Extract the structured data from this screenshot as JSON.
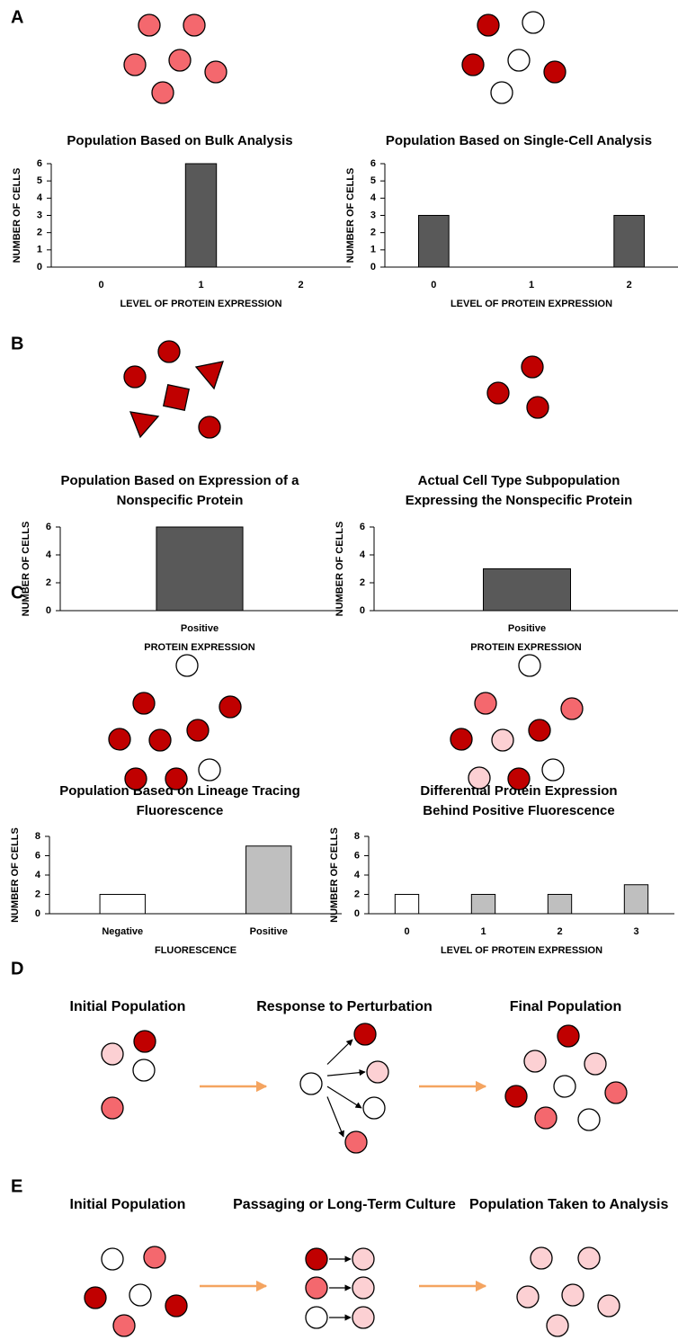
{
  "panels": [
    "A",
    "B",
    "C",
    "D",
    "E"
  ],
  "diagrams": {
    "D": {
      "stages": [
        "Initial Population",
        "Response to Perturbation",
        "Final Population"
      ]
    },
    "E": {
      "stages": [
        "Initial Population",
        "Passaging or Long-Term Culture",
        "Population Taken to Analysis"
      ]
    }
  },
  "chart_data": [
    {
      "type": "bar",
      "title_lines": [
        "Population Based on Bulk Analysis"
      ],
      "categories": [
        "0",
        "1",
        "2"
      ],
      "values": [
        0,
        6,
        0
      ],
      "colors": [
        "#595959",
        "#595959",
        "#595959"
      ],
      "xlabel": "LEVEL OF PROTEIN EXPRESSION",
      "ylabel": "NUMBER OF CELLS",
      "ylim": [
        0,
        6
      ],
      "yticks": [
        0,
        1,
        2,
        3,
        4,
        5,
        6
      ]
    },
    {
      "type": "bar",
      "title_lines": [
        "Population Based on Single-Cell Analysis"
      ],
      "categories": [
        "0",
        "1",
        "2"
      ],
      "values": [
        3,
        0,
        3
      ],
      "colors": [
        "#595959",
        "#595959",
        "#595959"
      ],
      "xlabel": "LEVEL OF PROTEIN EXPRESSION",
      "ylabel": "NUMBER OF CELLS",
      "ylim": [
        0,
        6
      ],
      "yticks": [
        0,
        1,
        2,
        3,
        4,
        5,
        6
      ]
    },
    {
      "type": "bar",
      "title_lines": [
        "Population Based on Expression of a",
        "Nonspecific Protein"
      ],
      "categories": [
        "Positive"
      ],
      "values": [
        6
      ],
      "colors": [
        "#595959"
      ],
      "xlabel": "PROTEIN EXPRESSION",
      "ylabel": "NUMBER OF CELLS",
      "ylim": [
        0,
        6
      ],
      "yticks": [
        0,
        2,
        4,
        6
      ]
    },
    {
      "type": "bar",
      "title_lines": [
        "Actual Cell Type Subpopulation",
        "Expressing the Nonspecific Protein"
      ],
      "categories": [
        "Positive"
      ],
      "values": [
        3
      ],
      "colors": [
        "#595959"
      ],
      "xlabel": "PROTEIN EXPRESSION",
      "ylabel": "NUMBER OF CELLS",
      "ylim": [
        0,
        6
      ],
      "yticks": [
        0,
        2,
        4,
        6
      ]
    },
    {
      "type": "bar",
      "title_lines": [
        "Population Based on Lineage Tracing",
        "Fluorescence"
      ],
      "categories": [
        "Negative",
        "Positive"
      ],
      "values": [
        2,
        7
      ],
      "colors": [
        "#ffffff",
        "#bfbfbf"
      ],
      "xlabel": "FLUORESCENCE",
      "ylabel": "NUMBER OF CELLS",
      "ylim": [
        0,
        8
      ],
      "yticks": [
        0,
        2,
        4,
        6,
        8
      ]
    },
    {
      "type": "bar",
      "title_lines": [
        "Differential Protein Expression",
        "Behind Positive Fluorescence"
      ],
      "categories": [
        "0",
        "1",
        "2",
        "3"
      ],
      "values": [
        2,
        2,
        2,
        3
      ],
      "colors": [
        "#ffffff",
        "#bfbfbf",
        "#bfbfbf",
        "#bfbfbf"
      ],
      "xlabel": "LEVEL OF PROTEIN EXPRESSION",
      "ylabel": "NUMBER OF CELLS",
      "ylim": [
        0,
        8
      ],
      "yticks": [
        0,
        2,
        4,
        6,
        8
      ]
    }
  ]
}
